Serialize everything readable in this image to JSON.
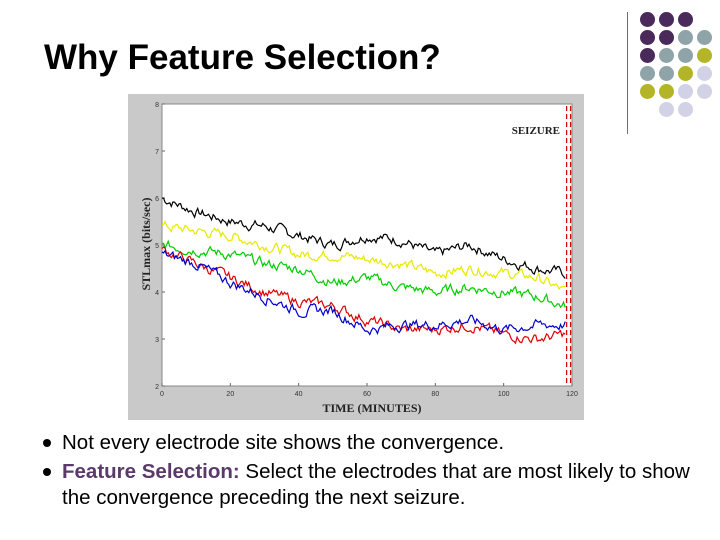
{
  "slide": {
    "title": "Why Feature Selection?",
    "colors": {
      "purple": "#4a2a5a",
      "gray_blue": "#8fa4a8",
      "olive": "#b4b428",
      "lavender": "#d2d2e6",
      "accent": "#5a3a6a"
    }
  },
  "chart_data": {
    "type": "line",
    "xlabel": "TIME (MINUTES)",
    "ylabel": "STLmax (bits/sec)",
    "annotation": "SEIZURE",
    "x_ticks": [
      "0",
      "20",
      "40",
      "60",
      "80",
      "100",
      "120"
    ],
    "y_ticks": [
      "2",
      "3",
      "4",
      "5",
      "6",
      "7",
      "8"
    ],
    "xlim": [
      0,
      120
    ],
    "ylim": [
      2,
      8
    ],
    "seizure_x": 119,
    "x": [
      0,
      10,
      20,
      30,
      40,
      50,
      60,
      70,
      80,
      90,
      100,
      110,
      118
    ],
    "series": [
      {
        "color": "#000000",
        "values": [
          6.0,
          5.7,
          5.5,
          5.4,
          5.2,
          5.0,
          5.2,
          5.1,
          4.8,
          5.0,
          4.7,
          4.5,
          4.4
        ]
      },
      {
        "color": "#e8e800",
        "values": [
          5.4,
          5.3,
          5.2,
          5.0,
          4.8,
          4.8,
          4.7,
          4.6,
          4.4,
          4.5,
          4.4,
          4.3,
          4.0
        ]
      },
      {
        "color": "#00cc00",
        "values": [
          5.0,
          4.9,
          4.8,
          4.6,
          4.5,
          4.2,
          4.3,
          4.1,
          4.0,
          4.1,
          4.0,
          3.9,
          3.7
        ]
      },
      {
        "color": "#e00000",
        "values": [
          4.9,
          4.6,
          4.3,
          4.0,
          3.8,
          3.7,
          3.4,
          3.2,
          3.2,
          3.3,
          3.1,
          3.0,
          3.1
        ]
      },
      {
        "color": "#0000cc",
        "values": [
          4.8,
          4.6,
          4.2,
          3.9,
          3.6,
          3.6,
          3.2,
          3.3,
          3.3,
          3.4,
          3.2,
          3.3,
          3.3
        ]
      }
    ]
  },
  "bullets": [
    {
      "text": "Not every electrode site shows the convergence."
    },
    {
      "label": "Feature Selection:",
      "text": " Select the electrodes that are most likely to show the convergence preceding the next seizure."
    }
  ]
}
